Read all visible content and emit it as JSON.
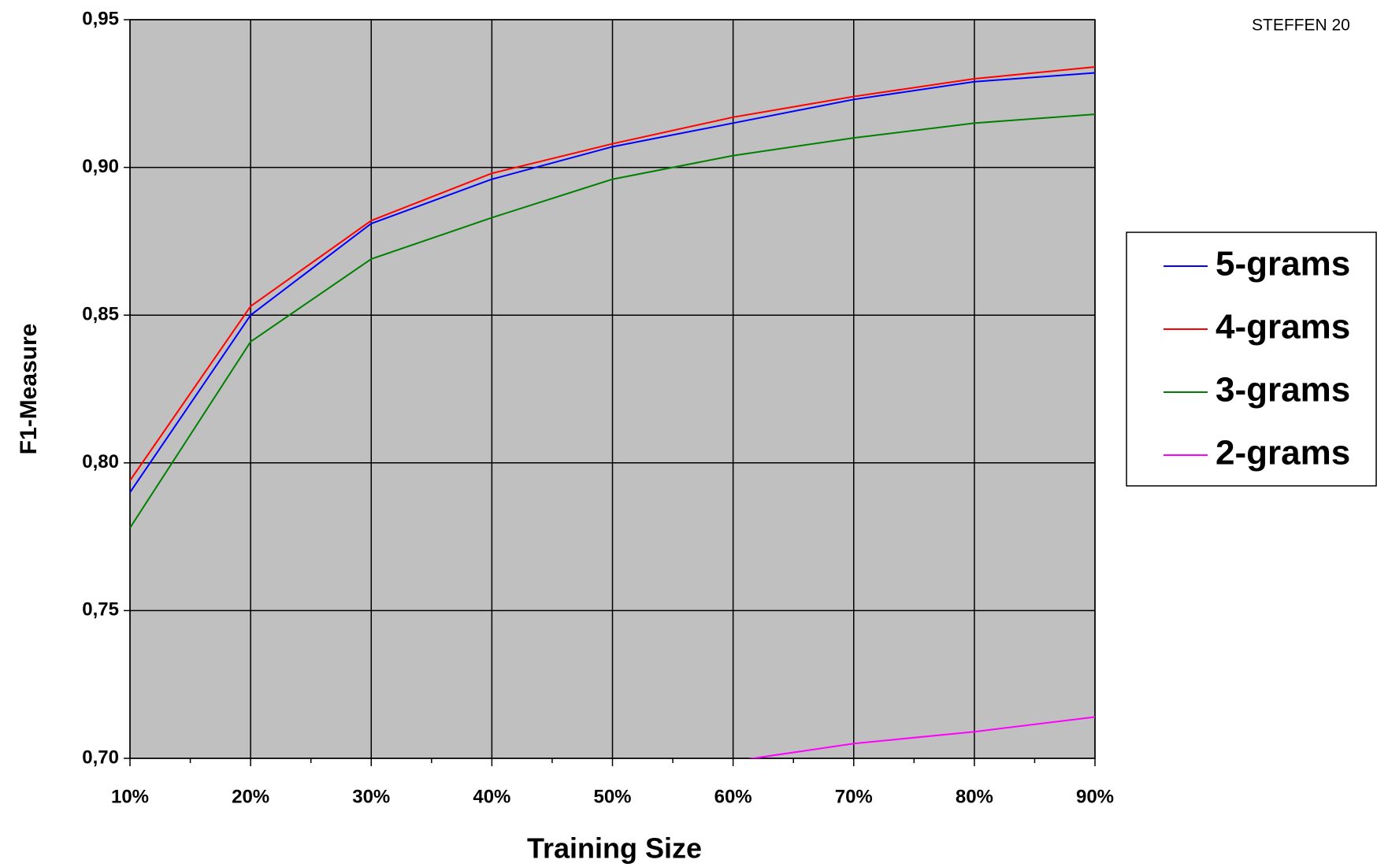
{
  "chart_data": {
    "type": "line",
    "annotation": "STEFFEN 20",
    "x_label": "Training Size",
    "y_label": "F1-Measure",
    "categories": [
      "10%",
      "20%",
      "30%",
      "40%",
      "50%",
      "60%",
      "70%",
      "80%",
      "90%"
    ],
    "series": [
      {
        "name": "5-grams",
        "color": "#0000ff",
        "values": [
          0.79,
          0.85,
          0.881,
          0.896,
          0.907,
          0.915,
          0.923,
          0.929,
          0.932
        ]
      },
      {
        "name": "4-grams",
        "color": "#ff0000",
        "values": [
          0.794,
          0.853,
          0.882,
          0.898,
          0.908,
          0.917,
          0.924,
          0.93,
          0.934
        ]
      },
      {
        "name": "3-grams",
        "color": "#008000",
        "values": [
          0.778,
          0.841,
          0.869,
          0.883,
          0.896,
          0.904,
          0.91,
          0.915,
          0.918
        ]
      },
      {
        "name": "2-grams",
        "color": "#ff00ff",
        "values": [
          null,
          null,
          null,
          null,
          null,
          0.699,
          0.705,
          0.709,
          0.714
        ]
      }
    ],
    "ylim": [
      0.7,
      0.95
    ],
    "yticks": [
      {
        "value": 0.7,
        "label": "0,70"
      },
      {
        "value": 0.75,
        "label": "0,75"
      },
      {
        "value": 0.8,
        "label": "0,80"
      },
      {
        "value": 0.85,
        "label": "0,85"
      },
      {
        "value": 0.9,
        "label": "0,90"
      },
      {
        "value": 0.95,
        "label": "0,95"
      }
    ],
    "grid": true,
    "plot_background": "#c0c0c0",
    "legend_position": "right"
  }
}
